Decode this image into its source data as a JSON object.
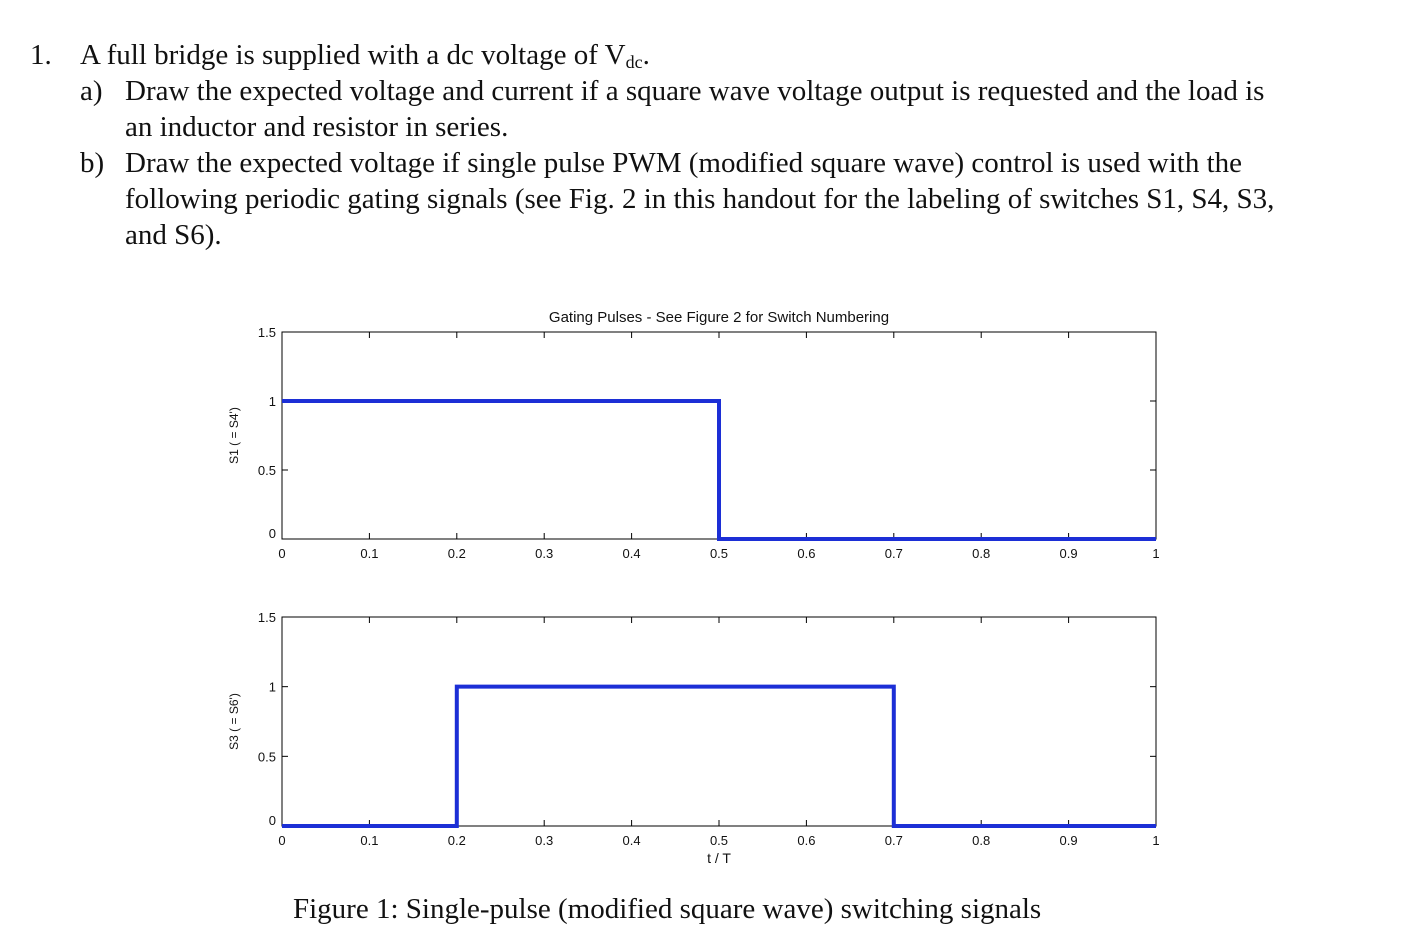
{
  "problem": {
    "number": "1.",
    "intro_text": "A full bridge is supplied with a dc voltage of V",
    "intro_sub": "dc",
    "intro_end": ".",
    "part_a": {
      "label": "a)",
      "line1": "Draw the expected voltage and current if a square wave voltage output is requested and the load is",
      "line2": "an inductor and resistor in series."
    },
    "part_b": {
      "label": "b)",
      "line1": "Draw the expected voltage if single pulse PWM (modified square wave) control is used with the",
      "line2": "following periodic gating signals (see Fig. 2 in this handout for the labeling of switches S1, S4, S3,",
      "line3": "and S6)."
    }
  },
  "chart_data": {
    "type": "line",
    "title": "Gating Pulses - See Figure 2 for Switch Numbering",
    "xlabel": "t / T",
    "xlim": [
      0,
      1
    ],
    "x_ticks": [
      "0",
      "0.1",
      "0.2",
      "0.3",
      "0.4",
      "0.5",
      "0.6",
      "0.7",
      "0.8",
      "0.9",
      "1"
    ],
    "y_ticks": [
      "0",
      "0.5",
      "1",
      "1.5"
    ],
    "ylim": [
      0,
      1.5
    ],
    "line_color": "#1c2fd6",
    "subplots": [
      {
        "ylabel": "S1 ( = S4')",
        "series": [
          {
            "x": [
              0,
              0.5,
              0.5,
              1
            ],
            "y": [
              1,
              1,
              0,
              0
            ]
          }
        ]
      },
      {
        "ylabel": "S3 ( = S6')",
        "series": [
          {
            "x": [
              0,
              0.2,
              0.2,
              0.7,
              0.7,
              1
            ],
            "y": [
              0,
              0,
              1,
              1,
              0,
              0
            ]
          }
        ]
      }
    ]
  },
  "caption": "Figure 1: Single-pulse (modified square wave) switching signals"
}
